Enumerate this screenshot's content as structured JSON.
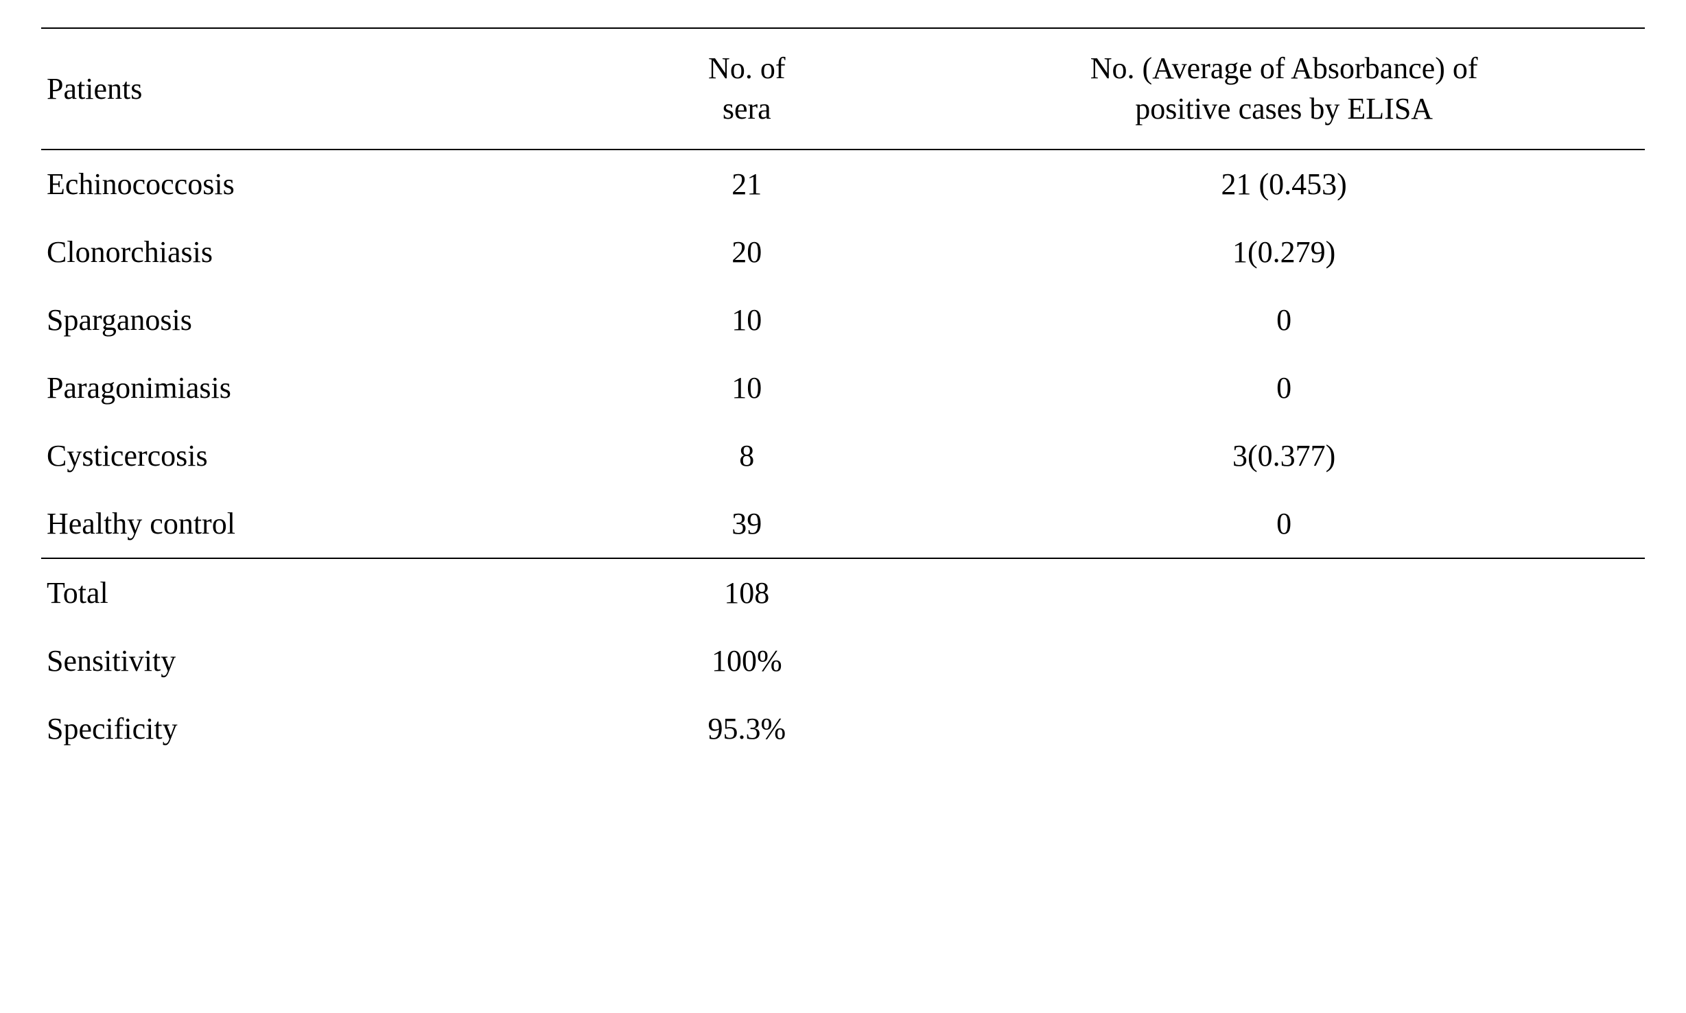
{
  "table": {
    "type": "table",
    "background_color": "#ffffff",
    "text_color": "#000000",
    "border_color": "#000000",
    "font_family": "Times New Roman",
    "header_fontsize": 44,
    "cell_fontsize": 44,
    "column_widths": [
      "33%",
      "22%",
      "45%"
    ],
    "column_alignments": [
      "left",
      "center",
      "center"
    ],
    "columns": [
      "Patients",
      "No. of sera",
      "No. (Average of Absorbance) of positive cases by ELISA"
    ],
    "header_multiline": {
      "col1_line1": "No. of",
      "col1_line2": "sera",
      "col2_line1": "No. (Average of Absorbance) of",
      "col2_line2": "positive cases by ELISA"
    },
    "rows": [
      {
        "patients": "Echinococcosis",
        "sera": "21",
        "elisa": "21 (0.453)"
      },
      {
        "patients": "Clonorchiasis",
        "sera": "20",
        "elisa": "1(0.279)"
      },
      {
        "patients": "Sparganosis",
        "sera": "10",
        "elisa": "0"
      },
      {
        "patients": "Paragonimiasis",
        "sera": "10",
        "elisa": "0"
      },
      {
        "patients": "Cysticercosis",
        "sera": "8",
        "elisa": "3(0.377)"
      },
      {
        "patients": "Healthy control",
        "sera": "39",
        "elisa": "0"
      }
    ],
    "summary_rows": [
      {
        "label": "Total",
        "value": "108",
        "elisa": ""
      },
      {
        "label": "Sensitivity",
        "value": "100%",
        "elisa": ""
      },
      {
        "label": "Specificity",
        "value": "95.3%",
        "elisa": ""
      }
    ]
  }
}
